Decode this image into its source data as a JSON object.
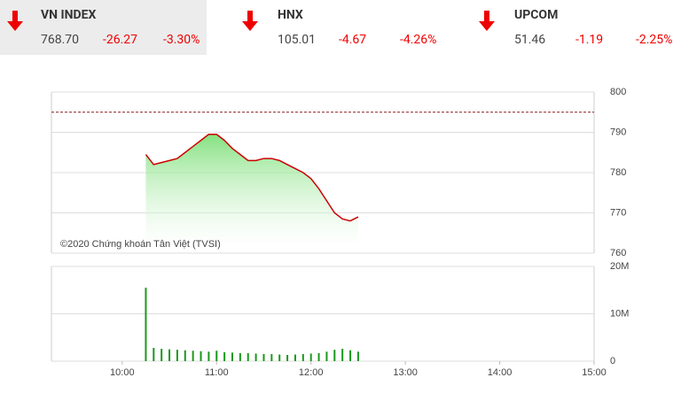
{
  "indices": [
    {
      "name": "VN INDEX",
      "value": "768.70",
      "change": "-26.27",
      "percent": "-3.30%"
    },
    {
      "name": "HNX",
      "value": "105.01",
      "change": "-4.67",
      "percent": "-4.26%"
    },
    {
      "name": "UPCOM",
      "value": "51.46",
      "change": "-1.19",
      "percent": "-2.25%"
    }
  ],
  "chart_data": [
    {
      "type": "area",
      "annotation": "©2020 Chứng khoán Tân Việt (TVSI)",
      "color": "#cc0000",
      "fill": "#7ee07a",
      "x": [
        "10:15",
        "10:20",
        "10:25",
        "10:30",
        "10:35",
        "10:40",
        "10:45",
        "10:50",
        "10:55",
        "11:00",
        "11:05",
        "11:10",
        "11:15",
        "11:20",
        "11:25",
        "11:30",
        "11:35",
        "11:40",
        "11:45",
        "11:50",
        "11:55",
        "12:00",
        "12:05",
        "12:10",
        "12:15",
        "12:20",
        "12:25",
        "12:30"
      ],
      "values": [
        784.5,
        782,
        782.5,
        783,
        783.5,
        785,
        786.5,
        788,
        789.5,
        789.5,
        788,
        786,
        784.5,
        783,
        783,
        783.5,
        783.5,
        783,
        782,
        781,
        780,
        778.5,
        776,
        773,
        770,
        768.5,
        768,
        769
      ],
      "reference_line": 795,
      "xlim": [
        "09:15",
        "15:00"
      ],
      "ylim": [
        760,
        800
      ],
      "yticks": [
        760,
        770,
        780,
        790,
        800
      ],
      "grid": true
    },
    {
      "type": "bar",
      "color": "#1a9a1a",
      "x": [
        "10:15",
        "10:20",
        "10:25",
        "10:30",
        "10:35",
        "10:40",
        "10:45",
        "10:50",
        "10:55",
        "11:00",
        "11:05",
        "11:10",
        "11:15",
        "11:20",
        "11:25",
        "11:30",
        "11:35",
        "11:40",
        "11:45",
        "11:50",
        "11:55",
        "12:00",
        "12:05",
        "12:10",
        "12:15",
        "12:20",
        "12:25",
        "12:30"
      ],
      "values": [
        15500000,
        2800000,
        2600000,
        2500000,
        2400000,
        2300000,
        2200000,
        2100000,
        2000000,
        2200000,
        1900000,
        1800000,
        1700000,
        1700000,
        1600000,
        1500000,
        1500000,
        1400000,
        1300000,
        1400000,
        1500000,
        1600000,
        1700000,
        2000000,
        2400000,
        2600000,
        2300000,
        2000000
      ],
      "xlim": [
        "09:15",
        "15:00"
      ],
      "xticks": [
        "10:00",
        "11:00",
        "12:00",
        "13:00",
        "14:00",
        "15:00"
      ],
      "ylim": [
        0,
        20000000
      ],
      "yticks": [
        0,
        {
          "value": 10000000,
          "label": "10M"
        },
        {
          "value": 20000000,
          "label": "20M"
        }
      ],
      "grid": true
    }
  ]
}
